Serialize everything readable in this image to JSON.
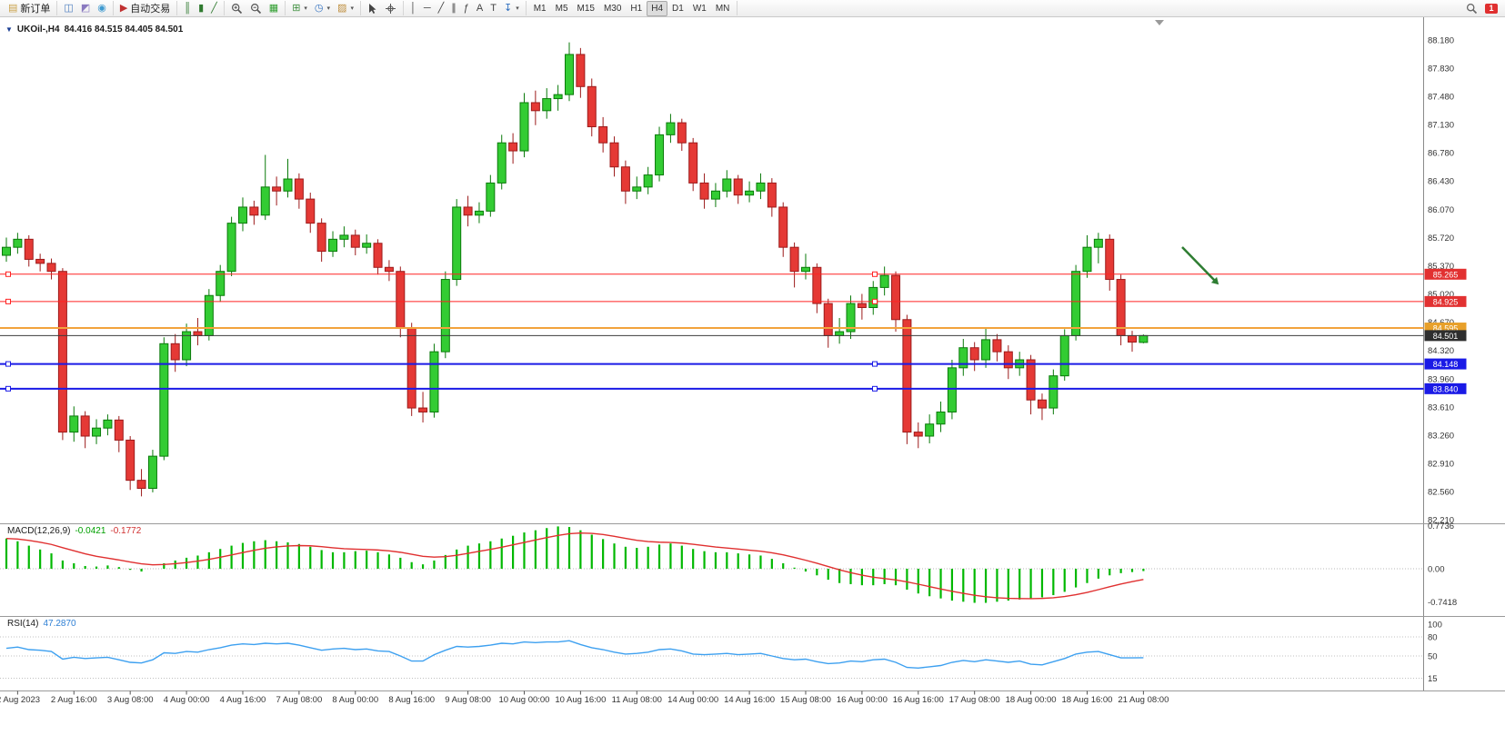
{
  "toolbar": {
    "notification_badge": "1",
    "timeframes": [
      "M1",
      "M5",
      "M15",
      "M30",
      "H1",
      "H4",
      "D1",
      "W1",
      "MN"
    ],
    "active_timeframe": "H4",
    "groups": [
      {
        "items": [
          {
            "name": "new-order-button",
            "icon": "new-order-icon",
            "glyph": "▤",
            "color": "#caa24a",
            "label": "新订单"
          }
        ]
      },
      {
        "items": [
          {
            "name": "chart-windows-button",
            "icon": "chart-window-icon",
            "glyph": "◫",
            "color": "#4d7ec0"
          },
          {
            "name": "profiles-button",
            "icon": "profiles-icon",
            "glyph": "◩",
            "color": "#8a79c0"
          },
          {
            "name": "news-button",
            "icon": "news-icon",
            "glyph": "◉",
            "color": "#3f9ad0"
          }
        ]
      },
      {
        "items": [
          {
            "name": "auto-trading-button",
            "icon": "auto-trading-icon",
            "glyph": "▶",
            "color": "#c03030",
            "label": "自动交易"
          }
        ]
      },
      {
        "items": [
          {
            "name": "bar-chart-button",
            "icon": "bar-chart-icon",
            "glyph": "║",
            "color": "#2f7a2f"
          },
          {
            "name": "candlestick-chart-button",
            "icon": "candlestick-icon",
            "glyph": "▮",
            "color": "#2f7a2f"
          },
          {
            "name": "line-chart-button",
            "icon": "line-chart-icon",
            "glyph": "╱",
            "color": "#2f7a2f"
          }
        ]
      },
      {
        "items": [
          {
            "name": "zoom-in-button",
            "icon": "zoom-in-icon",
            "svg": "zoom-in"
          },
          {
            "name": "zoom-out-button",
            "icon": "zoom-out-icon",
            "svg": "zoom-out"
          },
          {
            "name": "tile-windows-button",
            "icon": "tile-windows-icon",
            "glyph": "▦",
            "color": "#2f9e2f"
          }
        ]
      },
      {
        "items": [
          {
            "name": "new-chart-button",
            "icon": "new-chart-icon",
            "glyph": "⊞",
            "color": "#3f8f3f",
            "caret": true
          },
          {
            "name": "period-button",
            "icon": "clock-icon",
            "glyph": "◷",
            "color": "#2f6fbf",
            "caret": true
          },
          {
            "name": "indicators-button",
            "icon": "indicators-icon",
            "glyph": "▨",
            "color": "#bf8f3f",
            "caret": true
          }
        ]
      },
      {
        "items": [
          {
            "name": "cursor-button",
            "icon": "cursor-icon",
            "svg": "cursor"
          },
          {
            "name": "crosshair-button",
            "icon": "crosshair-icon",
            "svg": "crosshair"
          }
        ]
      },
      {
        "items": [
          {
            "name": "vertical-line-button",
            "icon": "vertical-line-icon",
            "glyph": "│",
            "color": "#444444"
          },
          {
            "name": "horizontal-line-button",
            "icon": "horizontal-line-icon",
            "glyph": "─",
            "color": "#444444"
          },
          {
            "name": "trendline-button",
            "icon": "trendline-icon",
            "glyph": "╱",
            "color": "#444444"
          },
          {
            "name": "channel-button",
            "icon": "channel-icon",
            "glyph": "∥",
            "color": "#444444"
          },
          {
            "name": "fibonacci-button",
            "icon": "fibonacci-icon",
            "glyph": "ƒ",
            "color": "#444444"
          },
          {
            "name": "text-button",
            "icon": "text-icon",
            "glyph": "A",
            "color": "#444444"
          },
          {
            "name": "text-label-button",
            "icon": "text-label-icon",
            "glyph": "T",
            "color": "#444444"
          },
          {
            "name": "arrow-objects-button",
            "icon": "arrow-objects-icon",
            "glyph": "↧",
            "color": "#2f6fbf",
            "caret": true
          }
        ]
      }
    ]
  },
  "chart_header": {
    "collapse_marker": "▼",
    "symbol_timeframe": "UKOil-,H4",
    "ohlc_text": "84.416 84.515 84.405 84.501"
  },
  "chart_data": {
    "type": "candlestick",
    "symbol": "UKOil-",
    "timeframe": "H4",
    "up_color": "#33cc33",
    "up_stroke": "#0a7a0a",
    "down_color": "#e53935",
    "down_stroke": "#9c1b1b",
    "price_axis_labels": [
      "88.180",
      "87.830",
      "87.480",
      "87.130",
      "86.780",
      "86.430",
      "86.070",
      "85.720",
      "85.370",
      "85.020",
      "84.670",
      "84.320",
      "83.960",
      "83.610",
      "83.260",
      "82.910",
      "82.560",
      "82.210"
    ],
    "hlines": [
      {
        "value": 85.265,
        "label": "85.265",
        "color": "#ff2222",
        "width": 1,
        "badge_color": "#e23131",
        "handles": true
      },
      {
        "value": 84.925,
        "label": "84.925",
        "color": "#ff2222",
        "width": 1,
        "badge_color": "#e23131",
        "handles": true
      },
      {
        "value": 84.595,
        "label": "84.595",
        "color": "#f2a33c",
        "width": 2,
        "badge_color": "#e8a02a",
        "handles": false
      },
      {
        "value": 84.501,
        "label": "84.501",
        "color": "#3c3c3c",
        "width": 1,
        "badge_color": "#2e2e2e",
        "handles": false
      },
      {
        "value": 84.148,
        "label": "84.148",
        "color": "#1a1ae6",
        "width": 2,
        "badge_color": "#1a1ae6",
        "handles": true
      },
      {
        "value": 83.84,
        "label": "83.840",
        "color": "#1a1ae6",
        "width": 2,
        "badge_color": "#1a1ae6",
        "handles": true
      }
    ],
    "candles": [
      [
        85.5,
        85.72,
        85.42,
        85.6
      ],
      [
        85.6,
        85.78,
        85.52,
        85.7
      ],
      [
        85.7,
        85.75,
        85.36,
        85.45
      ],
      [
        85.45,
        85.52,
        85.3,
        85.4
      ],
      [
        85.4,
        85.46,
        85.2,
        85.3
      ],
      [
        85.3,
        85.34,
        83.2,
        83.3
      ],
      [
        83.3,
        83.62,
        83.18,
        83.5
      ],
      [
        83.5,
        83.56,
        83.1,
        83.25
      ],
      [
        83.25,
        83.46,
        83.15,
        83.35
      ],
      [
        83.35,
        83.52,
        83.26,
        83.45
      ],
      [
        83.45,
        83.5,
        83.05,
        83.2
      ],
      [
        83.2,
        83.25,
        82.58,
        82.7
      ],
      [
        82.7,
        82.84,
        82.5,
        82.6
      ],
      [
        82.6,
        83.08,
        82.55,
        83.0
      ],
      [
        83.0,
        84.48,
        82.95,
        84.4
      ],
      [
        84.4,
        84.52,
        84.05,
        84.2
      ],
      [
        84.2,
        84.65,
        84.12,
        84.55
      ],
      [
        84.55,
        84.72,
        84.38,
        84.5
      ],
      [
        84.5,
        85.08,
        84.44,
        85.0
      ],
      [
        85.0,
        85.38,
        84.92,
        85.3
      ],
      [
        85.3,
        85.98,
        85.24,
        85.9
      ],
      [
        85.9,
        86.22,
        85.8,
        86.1
      ],
      [
        86.1,
        86.18,
        85.88,
        86.0
      ],
      [
        86.0,
        86.75,
        85.94,
        86.35
      ],
      [
        86.35,
        86.48,
        86.12,
        86.3
      ],
      [
        86.3,
        86.7,
        86.22,
        86.45
      ],
      [
        86.45,
        86.52,
        86.08,
        86.2
      ],
      [
        86.2,
        86.28,
        85.78,
        85.9
      ],
      [
        85.9,
        85.96,
        85.42,
        85.55
      ],
      [
        85.55,
        85.8,
        85.48,
        85.7
      ],
      [
        85.7,
        85.86,
        85.6,
        85.75
      ],
      [
        85.75,
        85.82,
        85.5,
        85.6
      ],
      [
        85.6,
        85.76,
        85.52,
        85.65
      ],
      [
        85.65,
        85.7,
        85.26,
        85.35
      ],
      [
        85.35,
        85.44,
        85.18,
        85.3
      ],
      [
        85.3,
        85.36,
        84.48,
        84.6
      ],
      [
        84.6,
        84.66,
        83.5,
        83.6
      ],
      [
        83.6,
        83.8,
        83.42,
        83.55
      ],
      [
        83.55,
        84.4,
        83.48,
        84.3
      ],
      [
        84.3,
        85.3,
        84.22,
        85.2
      ],
      [
        85.2,
        86.2,
        85.12,
        86.1
      ],
      [
        86.1,
        86.24,
        85.86,
        86.0
      ],
      [
        86.0,
        86.16,
        85.9,
        86.05
      ],
      [
        86.05,
        86.5,
        85.98,
        86.4
      ],
      [
        86.4,
        87.0,
        86.32,
        86.9
      ],
      [
        86.9,
        87.02,
        86.64,
        86.8
      ],
      [
        86.8,
        87.52,
        86.72,
        87.4
      ],
      [
        87.4,
        87.55,
        87.12,
        87.3
      ],
      [
        87.3,
        87.58,
        87.2,
        87.45
      ],
      [
        87.45,
        87.62,
        87.3,
        87.5
      ],
      [
        87.5,
        88.15,
        87.42,
        88.0
      ],
      [
        88.0,
        88.08,
        87.46,
        87.6
      ],
      [
        87.6,
        87.7,
        86.98,
        87.1
      ],
      [
        87.1,
        87.22,
        86.78,
        86.9
      ],
      [
        86.9,
        86.98,
        86.48,
        86.6
      ],
      [
        86.6,
        86.68,
        86.14,
        86.3
      ],
      [
        86.3,
        86.48,
        86.2,
        86.35
      ],
      [
        86.35,
        86.6,
        86.26,
        86.5
      ],
      [
        86.5,
        87.1,
        86.42,
        87.0
      ],
      [
        87.0,
        87.26,
        86.9,
        87.15
      ],
      [
        87.15,
        87.2,
        86.8,
        86.9
      ],
      [
        86.9,
        86.96,
        86.3,
        86.4
      ],
      [
        86.4,
        86.52,
        86.08,
        86.2
      ],
      [
        86.2,
        86.4,
        86.1,
        86.3
      ],
      [
        86.3,
        86.56,
        86.22,
        86.45
      ],
      [
        86.45,
        86.5,
        86.14,
        86.25
      ],
      [
        86.25,
        86.42,
        86.16,
        86.3
      ],
      [
        86.3,
        86.52,
        86.2,
        86.4
      ],
      [
        86.4,
        86.46,
        85.98,
        86.1
      ],
      [
        86.1,
        86.16,
        85.48,
        85.6
      ],
      [
        85.6,
        85.66,
        85.1,
        85.3
      ],
      [
        85.3,
        85.52,
        85.2,
        85.35
      ],
      [
        85.35,
        85.4,
        84.78,
        84.9
      ],
      [
        84.9,
        84.96,
        84.35,
        84.5
      ],
      [
        84.5,
        84.72,
        84.4,
        84.55
      ],
      [
        84.55,
        85.0,
        84.46,
        84.9
      ],
      [
        84.9,
        85.02,
        84.7,
        84.85
      ],
      [
        84.85,
        85.18,
        84.76,
        85.1
      ],
      [
        85.1,
        85.36,
        85.0,
        85.25
      ],
      [
        85.25,
        85.3,
        84.55,
        84.7
      ],
      [
        84.7,
        84.76,
        83.15,
        83.3
      ],
      [
        83.3,
        83.42,
        83.1,
        83.25
      ],
      [
        83.25,
        83.52,
        83.16,
        83.4
      ],
      [
        83.4,
        83.68,
        83.3,
        83.55
      ],
      [
        83.55,
        84.2,
        83.46,
        84.1
      ],
      [
        84.1,
        84.46,
        84.0,
        84.35
      ],
      [
        84.35,
        84.42,
        84.06,
        84.2
      ],
      [
        84.2,
        84.6,
        84.1,
        84.45
      ],
      [
        84.45,
        84.52,
        84.18,
        84.3
      ],
      [
        84.3,
        84.38,
        83.96,
        84.1
      ],
      [
        84.1,
        84.3,
        84.0,
        84.2
      ],
      [
        84.2,
        84.26,
        83.52,
        83.7
      ],
      [
        83.7,
        83.78,
        83.45,
        83.6
      ],
      [
        83.6,
        84.08,
        83.52,
        84.0
      ],
      [
        84.0,
        84.58,
        83.94,
        84.5
      ],
      [
        84.5,
        85.38,
        84.44,
        85.3
      ],
      [
        85.3,
        85.75,
        85.22,
        85.6
      ],
      [
        85.6,
        85.78,
        85.4,
        85.7
      ],
      [
        85.7,
        85.76,
        85.06,
        85.2
      ],
      [
        85.2,
        85.26,
        84.38,
        84.5
      ],
      [
        84.5,
        84.56,
        84.3,
        84.42
      ],
      [
        84.416,
        84.515,
        84.405,
        84.501
      ]
    ],
    "time_labels": [
      "2 Aug 2023",
      "2 Aug 16:00",
      "3 Aug 08:00",
      "4 Aug 00:00",
      "4 Aug 16:00",
      "7 Aug 08:00",
      "8 Aug 00:00",
      "8 Aug 16:00",
      "9 Aug 08:00",
      "10 Aug 00:00",
      "10 Aug 16:00",
      "11 Aug 08:00",
      "14 Aug 00:00",
      "14 Aug 16:00",
      "15 Aug 08:00",
      "16 Aug 00:00",
      "16 Aug 16:00",
      "17 Aug 08:00",
      "18 Aug 00:00",
      "18 Aug 16:00",
      "21 Aug 08:00"
    ],
    "macd": {
      "name": "MACD(12,26,9)",
      "value_main": "-0.0421",
      "value_signal": "-0.1772",
      "axis_labels": [
        "0.7736",
        "0.00",
        "-0.7418"
      ],
      "histogram_color": "#00b800",
      "signal_color": "#e03030",
      "values": [
        0.55,
        0.5,
        0.42,
        0.35,
        0.28,
        0.15,
        0.1,
        0.05,
        0.04,
        0.06,
        0.03,
        -0.02,
        -0.05,
        0.0,
        0.1,
        0.15,
        0.2,
        0.24,
        0.3,
        0.36,
        0.42,
        0.47,
        0.5,
        0.52,
        0.5,
        0.48,
        0.45,
        0.4,
        0.34,
        0.3,
        0.3,
        0.32,
        0.33,
        0.3,
        0.26,
        0.2,
        0.12,
        0.08,
        0.15,
        0.25,
        0.35,
        0.42,
        0.46,
        0.5,
        0.55,
        0.6,
        0.66,
        0.7,
        0.74,
        0.77,
        0.76,
        0.7,
        0.62,
        0.54,
        0.46,
        0.4,
        0.38,
        0.4,
        0.44,
        0.46,
        0.42,
        0.36,
        0.32,
        0.3,
        0.3,
        0.28,
        0.26,
        0.24,
        0.18,
        0.1,
        0.02,
        -0.05,
        -0.12,
        -0.2,
        -0.26,
        -0.28,
        -0.3,
        -0.3,
        -0.28,
        -0.3,
        -0.38,
        -0.45,
        -0.5,
        -0.54,
        -0.58,
        -0.6,
        -0.62,
        -0.62,
        -0.6,
        -0.58,
        -0.56,
        -0.55,
        -0.52,
        -0.48,
        -0.42,
        -0.34,
        -0.26,
        -0.18,
        -0.12,
        -0.08,
        -0.06,
        -0.0421
      ]
    },
    "rsi": {
      "name": "RSI(14)",
      "value": "47.2870",
      "axis_labels": [
        "100",
        "80",
        "50",
        "15"
      ],
      "levels": [
        80,
        50,
        15
      ],
      "line_color": "#3da0f0",
      "values": [
        62,
        64,
        60,
        59,
        57,
        45,
        48,
        46,
        47,
        48,
        44,
        40,
        39,
        44,
        55,
        54,
        57,
        56,
        60,
        63,
        67,
        69,
        68,
        70,
        69,
        70,
        67,
        63,
        59,
        61,
        62,
        60,
        61,
        58,
        57,
        50,
        42,
        42,
        52,
        59,
        65,
        64,
        65,
        67,
        70,
        69,
        72,
        71,
        72,
        72,
        74,
        68,
        63,
        60,
        56,
        53,
        54,
        56,
        60,
        61,
        58,
        53,
        52,
        53,
        54,
        52,
        53,
        54,
        50,
        46,
        44,
        45,
        41,
        38,
        39,
        42,
        41,
        44,
        45,
        40,
        32,
        31,
        33,
        35,
        40,
        43,
        41,
        44,
        42,
        40,
        42,
        37,
        36,
        41,
        46,
        53,
        56,
        57,
        52,
        47,
        47,
        47.29
      ]
    },
    "arrow_annotation": {
      "color": "#2e7d32"
    }
  }
}
